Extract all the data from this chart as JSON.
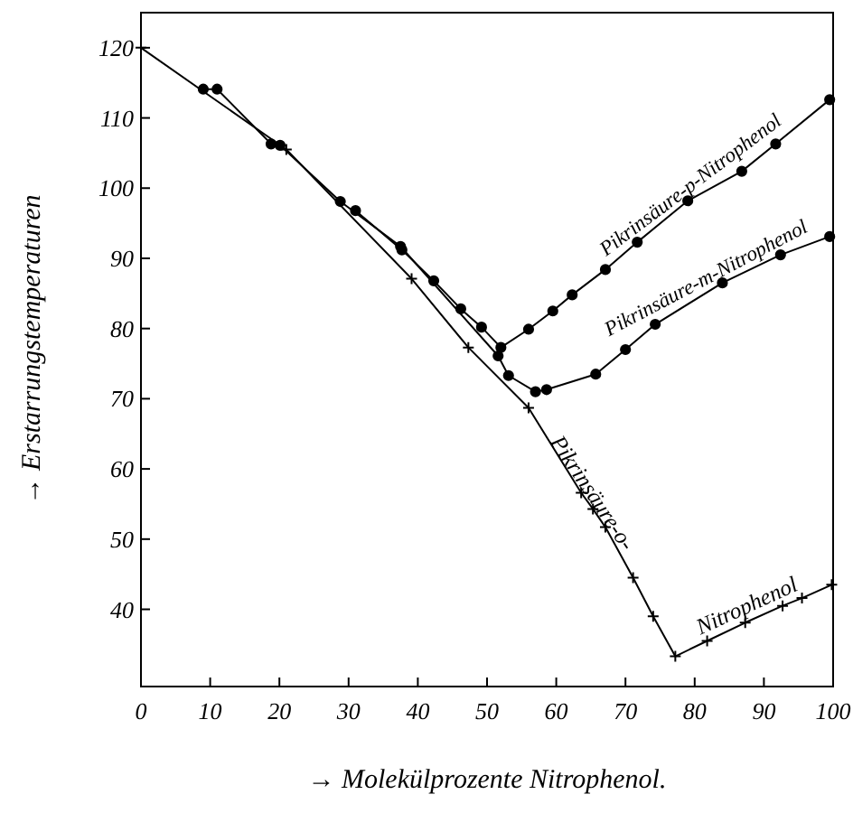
{
  "chart_data": {
    "type": "line",
    "xlabel": "→ Molekülprozente Nitrophenol.",
    "ylabel": "→ Erstarrungstemperaturen",
    "xlim": [
      0,
      100
    ],
    "ylim": [
      29,
      125
    ],
    "xticks": [
      0,
      10,
      20,
      30,
      40,
      50,
      60,
      70,
      80,
      90,
      100
    ],
    "yticks": [
      40,
      50,
      60,
      70,
      80,
      90,
      100,
      110,
      120
    ],
    "grid": false,
    "series": [
      {
        "name": "Pikrinsäure-p-Nitrophenol",
        "color": "#000000",
        "marker": "circle",
        "x": [
          31,
          37.7,
          42.3,
          46.2,
          49.2,
          52,
          56,
          59.5,
          62.3,
          67.1,
          71.7,
          79,
          86.8,
          91.7,
          99.5
        ],
        "values": [
          96.8,
          91.2,
          86.8,
          82.8,
          80.2,
          77.3,
          79.9,
          82.5,
          84.8,
          88.4,
          92.3,
          98.2,
          102.4,
          106.3,
          112.6
        ]
      },
      {
        "name": "Pikrinsäure-m-Nitrophenol",
        "color": "#000000",
        "marker": "circle",
        "x": [
          9,
          11,
          18.8,
          20.1,
          28.8,
          37.5,
          51.6,
          53.1,
          57,
          58.6,
          65.7,
          70,
          74.3,
          84,
          92.4,
          99.5
        ],
        "values": [
          114.1,
          114.1,
          106.3,
          106.1,
          98.1,
          91.7,
          76.1,
          73.3,
          71,
          71.3,
          73.5,
          77,
          80.6,
          86.5,
          90.5,
          93.1
        ]
      },
      {
        "name": "Pikrinsäure-o-Nitrophenol",
        "color": "#000000",
        "marker": "cross",
        "x": [
          0,
          21,
          39.1,
          47.3,
          56,
          63.6,
          65.3,
          67.1,
          71.1,
          74,
          77.2,
          81.8,
          87.3,
          92.7,
          95.5,
          99.8
        ],
        "values": [
          120,
          105.5,
          87.1,
          77.3,
          68.7,
          56.6,
          54.3,
          51.7,
          44.5,
          39,
          33.3,
          35.5,
          38.1,
          40.5,
          41.6,
          43.5
        ]
      }
    ]
  }
}
